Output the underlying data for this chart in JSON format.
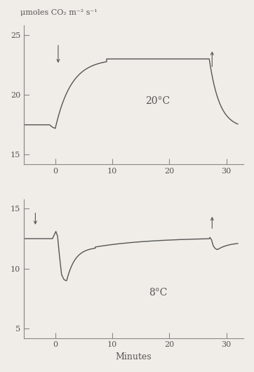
{
  "title_top": "μmoles CO₂ m⁻² s⁻¹",
  "xlabel": "Minutes",
  "bg_color": "#f0ede8",
  "line_color": "#555555",
  "border_color": "#888888",
  "top_panel": {
    "ylim": [
      14.2,
      25.8
    ],
    "yticks": [
      15,
      20,
      25
    ],
    "xlim": [
      -5.5,
      33
    ],
    "xticks": [
      0,
      10,
      20,
      30
    ],
    "label": "20°C"
  },
  "bottom_panel": {
    "ylim": [
      4.2,
      15.8
    ],
    "yticks": [
      5,
      10,
      15
    ],
    "xlim": [
      -5.5,
      33
    ],
    "xticks": [
      0,
      10,
      20,
      30
    ],
    "label": "8°C"
  }
}
